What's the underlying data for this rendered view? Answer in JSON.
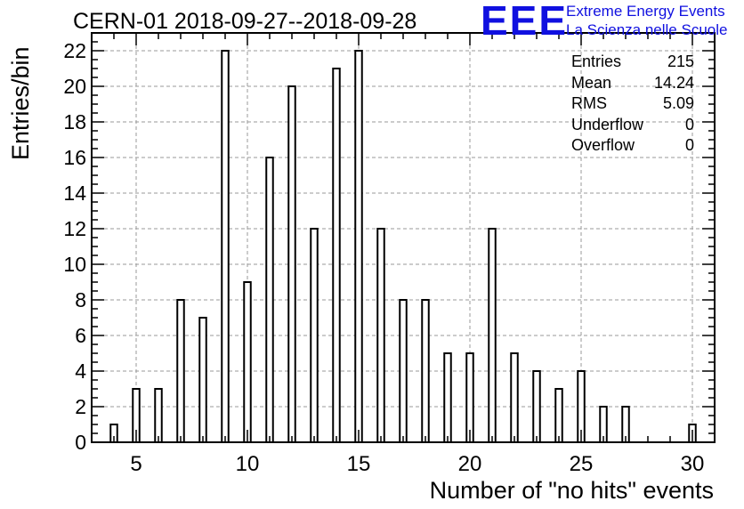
{
  "title": "CERN-01 2018-09-27--2018-09-28",
  "logo": {
    "letters": "EEE",
    "line1": "Extreme Energy Events",
    "line2": "La Scienza nelle Scuole",
    "color": "#1010e0"
  },
  "stats": [
    {
      "label": "Entries",
      "value": "215"
    },
    {
      "label": "Mean",
      "value": "14.24"
    },
    {
      "label": "RMS",
      "value": "5.09"
    },
    {
      "label": "Underflow",
      "value": "0"
    },
    {
      "label": "Overflow",
      "value": "0"
    }
  ],
  "chart_data": {
    "type": "bar",
    "title": "CERN-01 2018-09-27--2018-09-28",
    "xlabel": "Number of \"no hits\" events",
    "ylabel": "Entries/bin",
    "xlim": [
      3,
      31
    ],
    "ylim": [
      0,
      23
    ],
    "xticks": [
      5,
      10,
      15,
      20,
      25,
      30
    ],
    "yticks": [
      0,
      2,
      4,
      6,
      8,
      10,
      12,
      14,
      16,
      18,
      20,
      22
    ],
    "grid": true,
    "bar_width": 0.3,
    "x": [
      4,
      5,
      6,
      7,
      8,
      9,
      10,
      11,
      12,
      13,
      14,
      15,
      16,
      17,
      18,
      19,
      20,
      21,
      22,
      23,
      24,
      25,
      26,
      27,
      30
    ],
    "values": [
      1,
      3,
      3,
      8,
      7,
      22,
      9,
      16,
      20,
      12,
      21,
      22,
      12,
      8,
      8,
      5,
      5,
      12,
      5,
      4,
      3,
      4,
      2,
      2,
      1
    ]
  }
}
